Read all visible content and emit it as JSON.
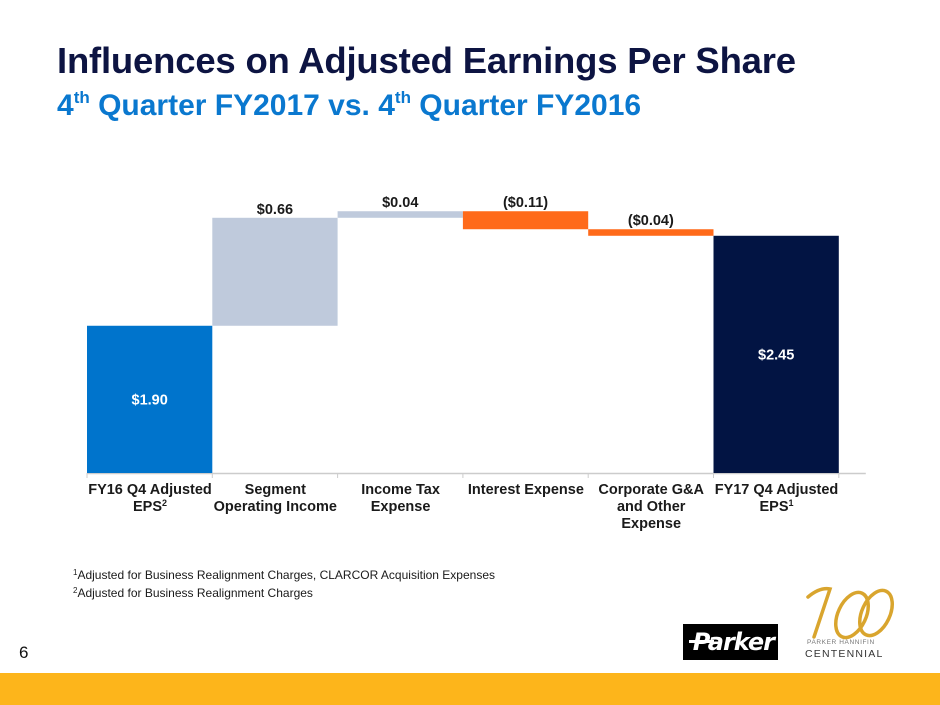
{
  "header": {
    "title": "Influences on Adjusted Earnings Per Share",
    "subtitle": {
      "part1_num": "4",
      "part1_sup": "th",
      "part1_text": " Quarter FY2017 vs. ",
      "part2_num": "4",
      "part2_sup": "th",
      "part2_text": " Quarter FY2016"
    }
  },
  "chart_data": {
    "type": "waterfall",
    "title": "Influences on Adjusted Earnings Per Share",
    "subtitle": "4th Quarter FY2017 vs. 4th Quarter FY2016",
    "categories": [
      {
        "line1": "FY16 Q4 Adjusted",
        "line2": "EPS",
        "sup": "2",
        "line3": ""
      },
      {
        "line1": "Segment",
        "line2": "Operating Income",
        "sup": "",
        "line3": ""
      },
      {
        "line1": "Income Tax",
        "line2": "Expense",
        "sup": "",
        "line3": ""
      },
      {
        "line1": "Interest Expense",
        "line2": "",
        "sup": "",
        "line3": ""
      },
      {
        "line1": "Corporate G&A",
        "line2": "and Other",
        "sup": "",
        "line3": "Expense"
      },
      {
        "line1": "FY17 Q4 Adjusted",
        "line2": "EPS",
        "sup": "1",
        "line3": ""
      }
    ],
    "values": [
      1.9,
      0.66,
      0.04,
      -0.11,
      -0.04,
      2.45
    ],
    "kinds": [
      "total",
      "increase",
      "increase",
      "decrease",
      "decrease",
      "total"
    ],
    "data_labels": [
      "$1.90",
      "$0.66",
      "$0.04",
      "($0.11)",
      "($0.04)",
      "$2.45"
    ],
    "ylim": [
      1.0,
      2.6
    ],
    "grid": false,
    "legend": "none",
    "colors": {
      "start_total": "#0074cc",
      "increase": "#bfcadc",
      "decrease": "#ff6a1a",
      "end_total": "#021443",
      "axis": "#cccccc"
    }
  },
  "footnotes": [
    {
      "sup": "1",
      "text": "Adjusted for Business Realignment Charges, CLARCOR Acquisition Expenses"
    },
    {
      "sup": "2",
      "text": "Adjusted for Business Realignment Charges"
    }
  ],
  "footer": {
    "page_number": "6",
    "parker_logo_text": "Parker",
    "centennial_number": "100",
    "centennial_line1": "PARKER HANNIFIN",
    "centennial_line2": "CENTENNIAL",
    "accent_color": "#fdb51b"
  }
}
